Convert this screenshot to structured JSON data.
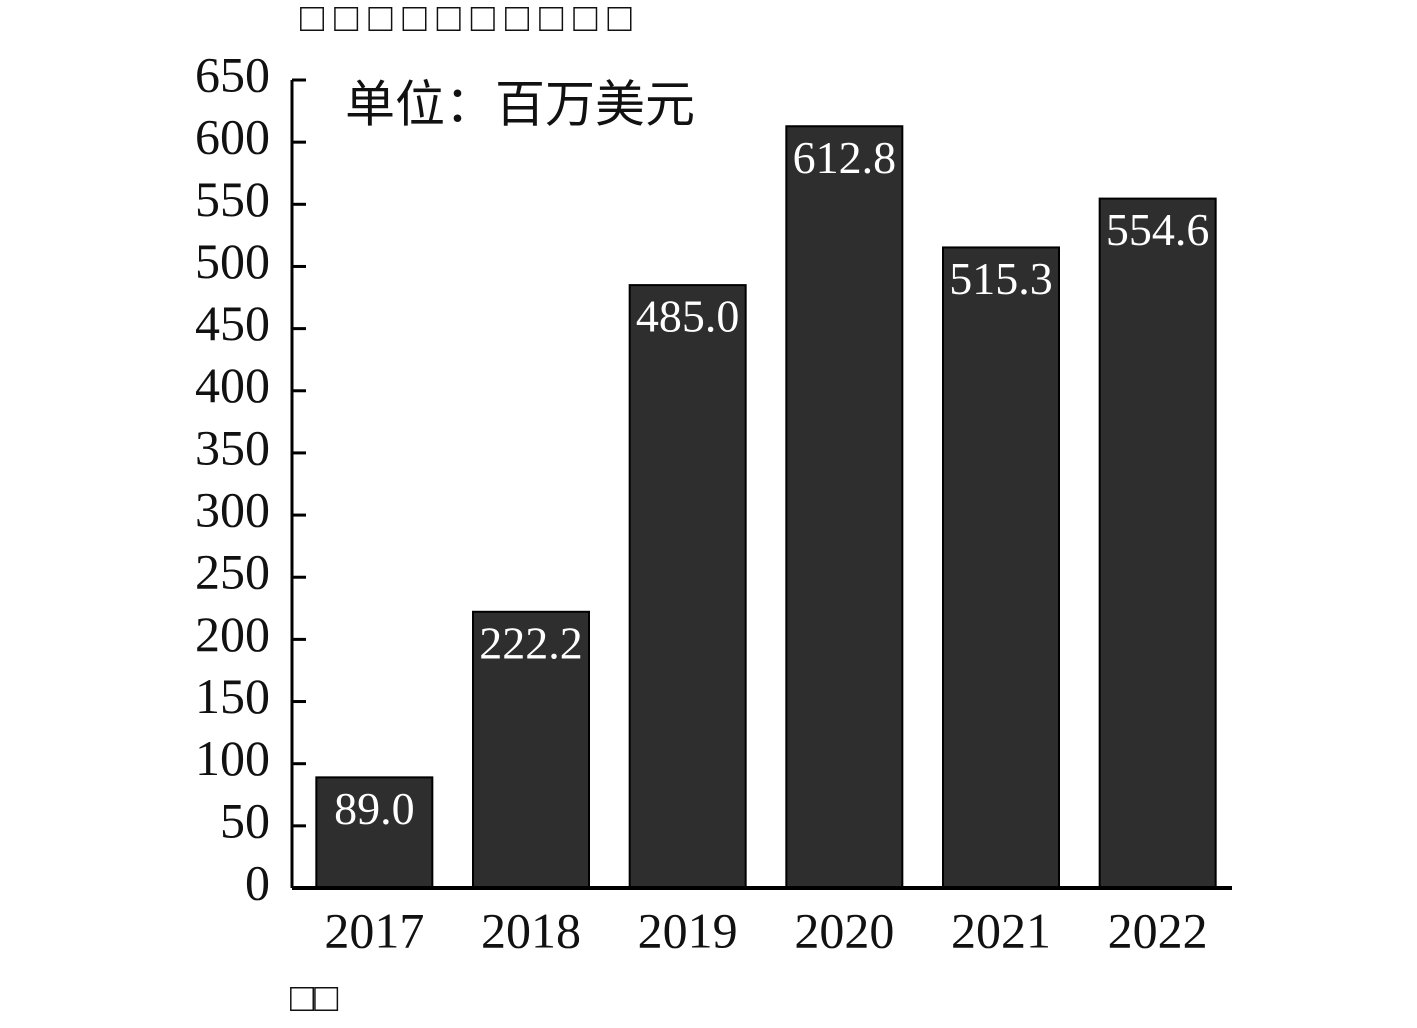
{
  "chart_data": {
    "type": "bar",
    "title": "□ □ □ □ □ □ □ □ □ □",
    "annotation": "单位：百万美元",
    "x_label": "□□",
    "categories": [
      "2017",
      "2018",
      "2019",
      "2020",
      "2021",
      "2022"
    ],
    "values": [
      89.0,
      222.2,
      485.0,
      612.8,
      515.3,
      554.6
    ],
    "value_labels": [
      "89.0",
      "222.2",
      "485.0",
      "612.8",
      "515.3",
      "554.6"
    ],
    "color": "#2e2e2e",
    "ylim": [
      0,
      650
    ],
    "yticks": [
      0,
      50,
      100,
      150,
      200,
      250,
      300,
      350,
      400,
      450,
      500,
      550,
      600,
      650
    ],
    "grid": false
  }
}
